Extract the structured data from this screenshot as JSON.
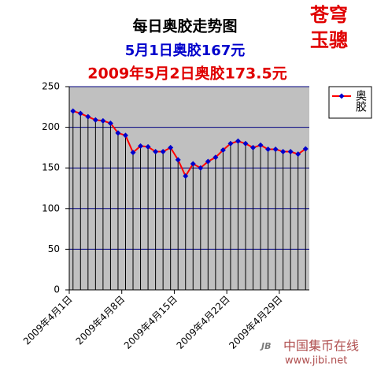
{
  "chart_data": {
    "type": "line",
    "title": "每日奥胶走势图",
    "subtitle": "5月1日奥胶167元",
    "subtitle2": "2009年5月2日奥胶173.5元",
    "annotations": [
      "苍穹",
      "玉骢",
      "中国集币在线",
      "www.jibi.net"
    ],
    "categories": [
      "2009年4月1日",
      null,
      null,
      null,
      null,
      null,
      null,
      "2009年4月8日",
      null,
      null,
      null,
      null,
      null,
      null,
      "2009年4月15日",
      null,
      null,
      null,
      null,
      null,
      null,
      "2009年4月22日",
      null,
      null,
      null,
      null,
      null,
      null,
      "2009年4月29日",
      null,
      null,
      null
    ],
    "series": [
      {
        "name": "奥胶",
        "color": "#ff0000",
        "marker_color": "#0000cc",
        "values": [
          220,
          217,
          213,
          209,
          208,
          205,
          193,
          190,
          169,
          177,
          176,
          170,
          170,
          175,
          160,
          140,
          155,
          150,
          158,
          163,
          172,
          180,
          183,
          180,
          175,
          178,
          173,
          173,
          170,
          170,
          167,
          173.5
        ]
      }
    ],
    "ylim": [
      0,
      250
    ],
    "yticks": [
      0,
      50,
      100,
      150,
      200,
      250
    ],
    "grid": true,
    "grid_color": "#000080",
    "plot_background": "#c0c0c0",
    "legend": "right"
  }
}
